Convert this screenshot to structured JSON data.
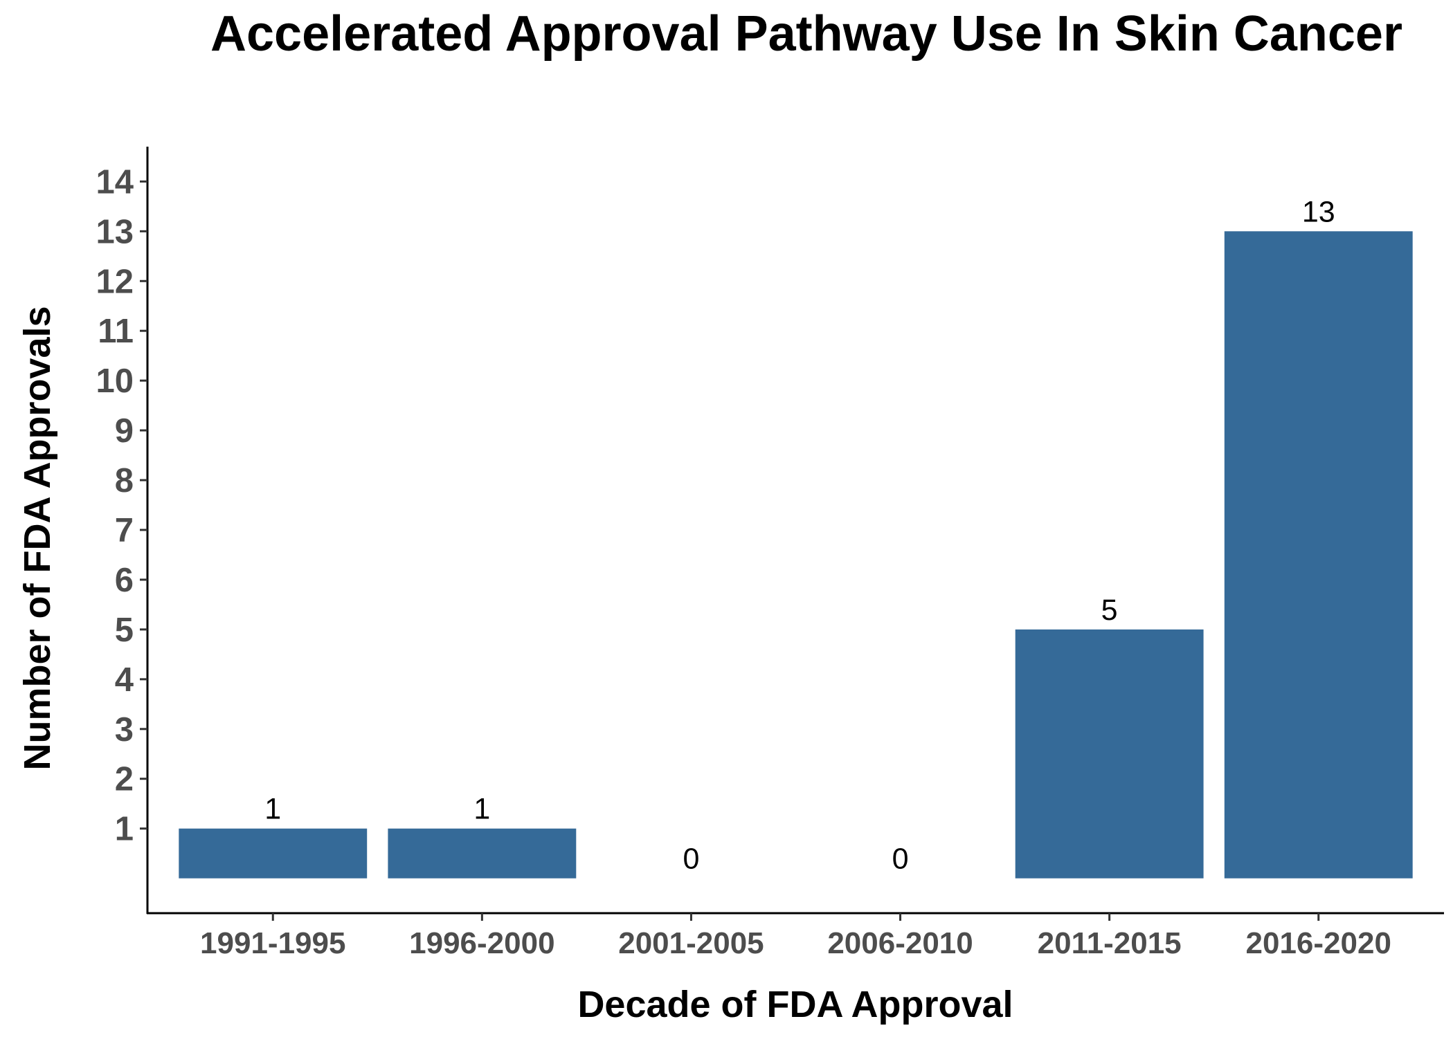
{
  "chart_data": {
    "type": "bar",
    "title": "Accelerated Approval Pathway Use In Skin Cancer",
    "xlabel": "Decade of FDA Approval",
    "ylabel": "Number of FDA Approvals",
    "categories": [
      "1991-1995",
      "1996-2000",
      "2001-2005",
      "2006-2010",
      "2011-2015",
      "2016-2020"
    ],
    "values": [
      1,
      1,
      0,
      0,
      5,
      13
    ],
    "data_labels": [
      "1",
      "1",
      "0",
      "0",
      "5",
      "13"
    ],
    "yticks": [
      "1",
      "2",
      "3",
      "4",
      "5",
      "6",
      "7",
      "8",
      "9",
      "10",
      "11",
      "12",
      "13",
      "14"
    ],
    "ylim": [
      -0.7,
      14.7
    ],
    "grid": false,
    "legend": "none",
    "bar_color": "#356a98"
  }
}
